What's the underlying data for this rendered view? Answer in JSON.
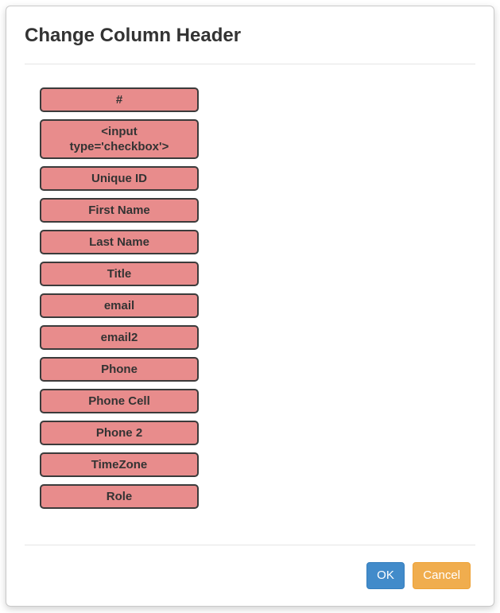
{
  "dialog": {
    "title": "Change Column Header",
    "columns": [
      {
        "label": "#"
      },
      {
        "label": "<input type='checkbox'>"
      },
      {
        "label": "Unique ID"
      },
      {
        "label": "First Name"
      },
      {
        "label": "Last Name"
      },
      {
        "label": "Title"
      },
      {
        "label": "email"
      },
      {
        "label": "email2"
      },
      {
        "label": "Phone"
      },
      {
        "label": "Phone Cell"
      },
      {
        "label": "Phone 2"
      },
      {
        "label": "TimeZone"
      },
      {
        "label": "Role"
      }
    ],
    "footer": {
      "ok_label": "OK",
      "cancel_label": "Cancel"
    },
    "colors": {
      "item_bg": "#e88c8c",
      "item_border": "#3b3b3b",
      "ok_bg": "#428bca",
      "cancel_bg": "#f0ad4e"
    }
  }
}
